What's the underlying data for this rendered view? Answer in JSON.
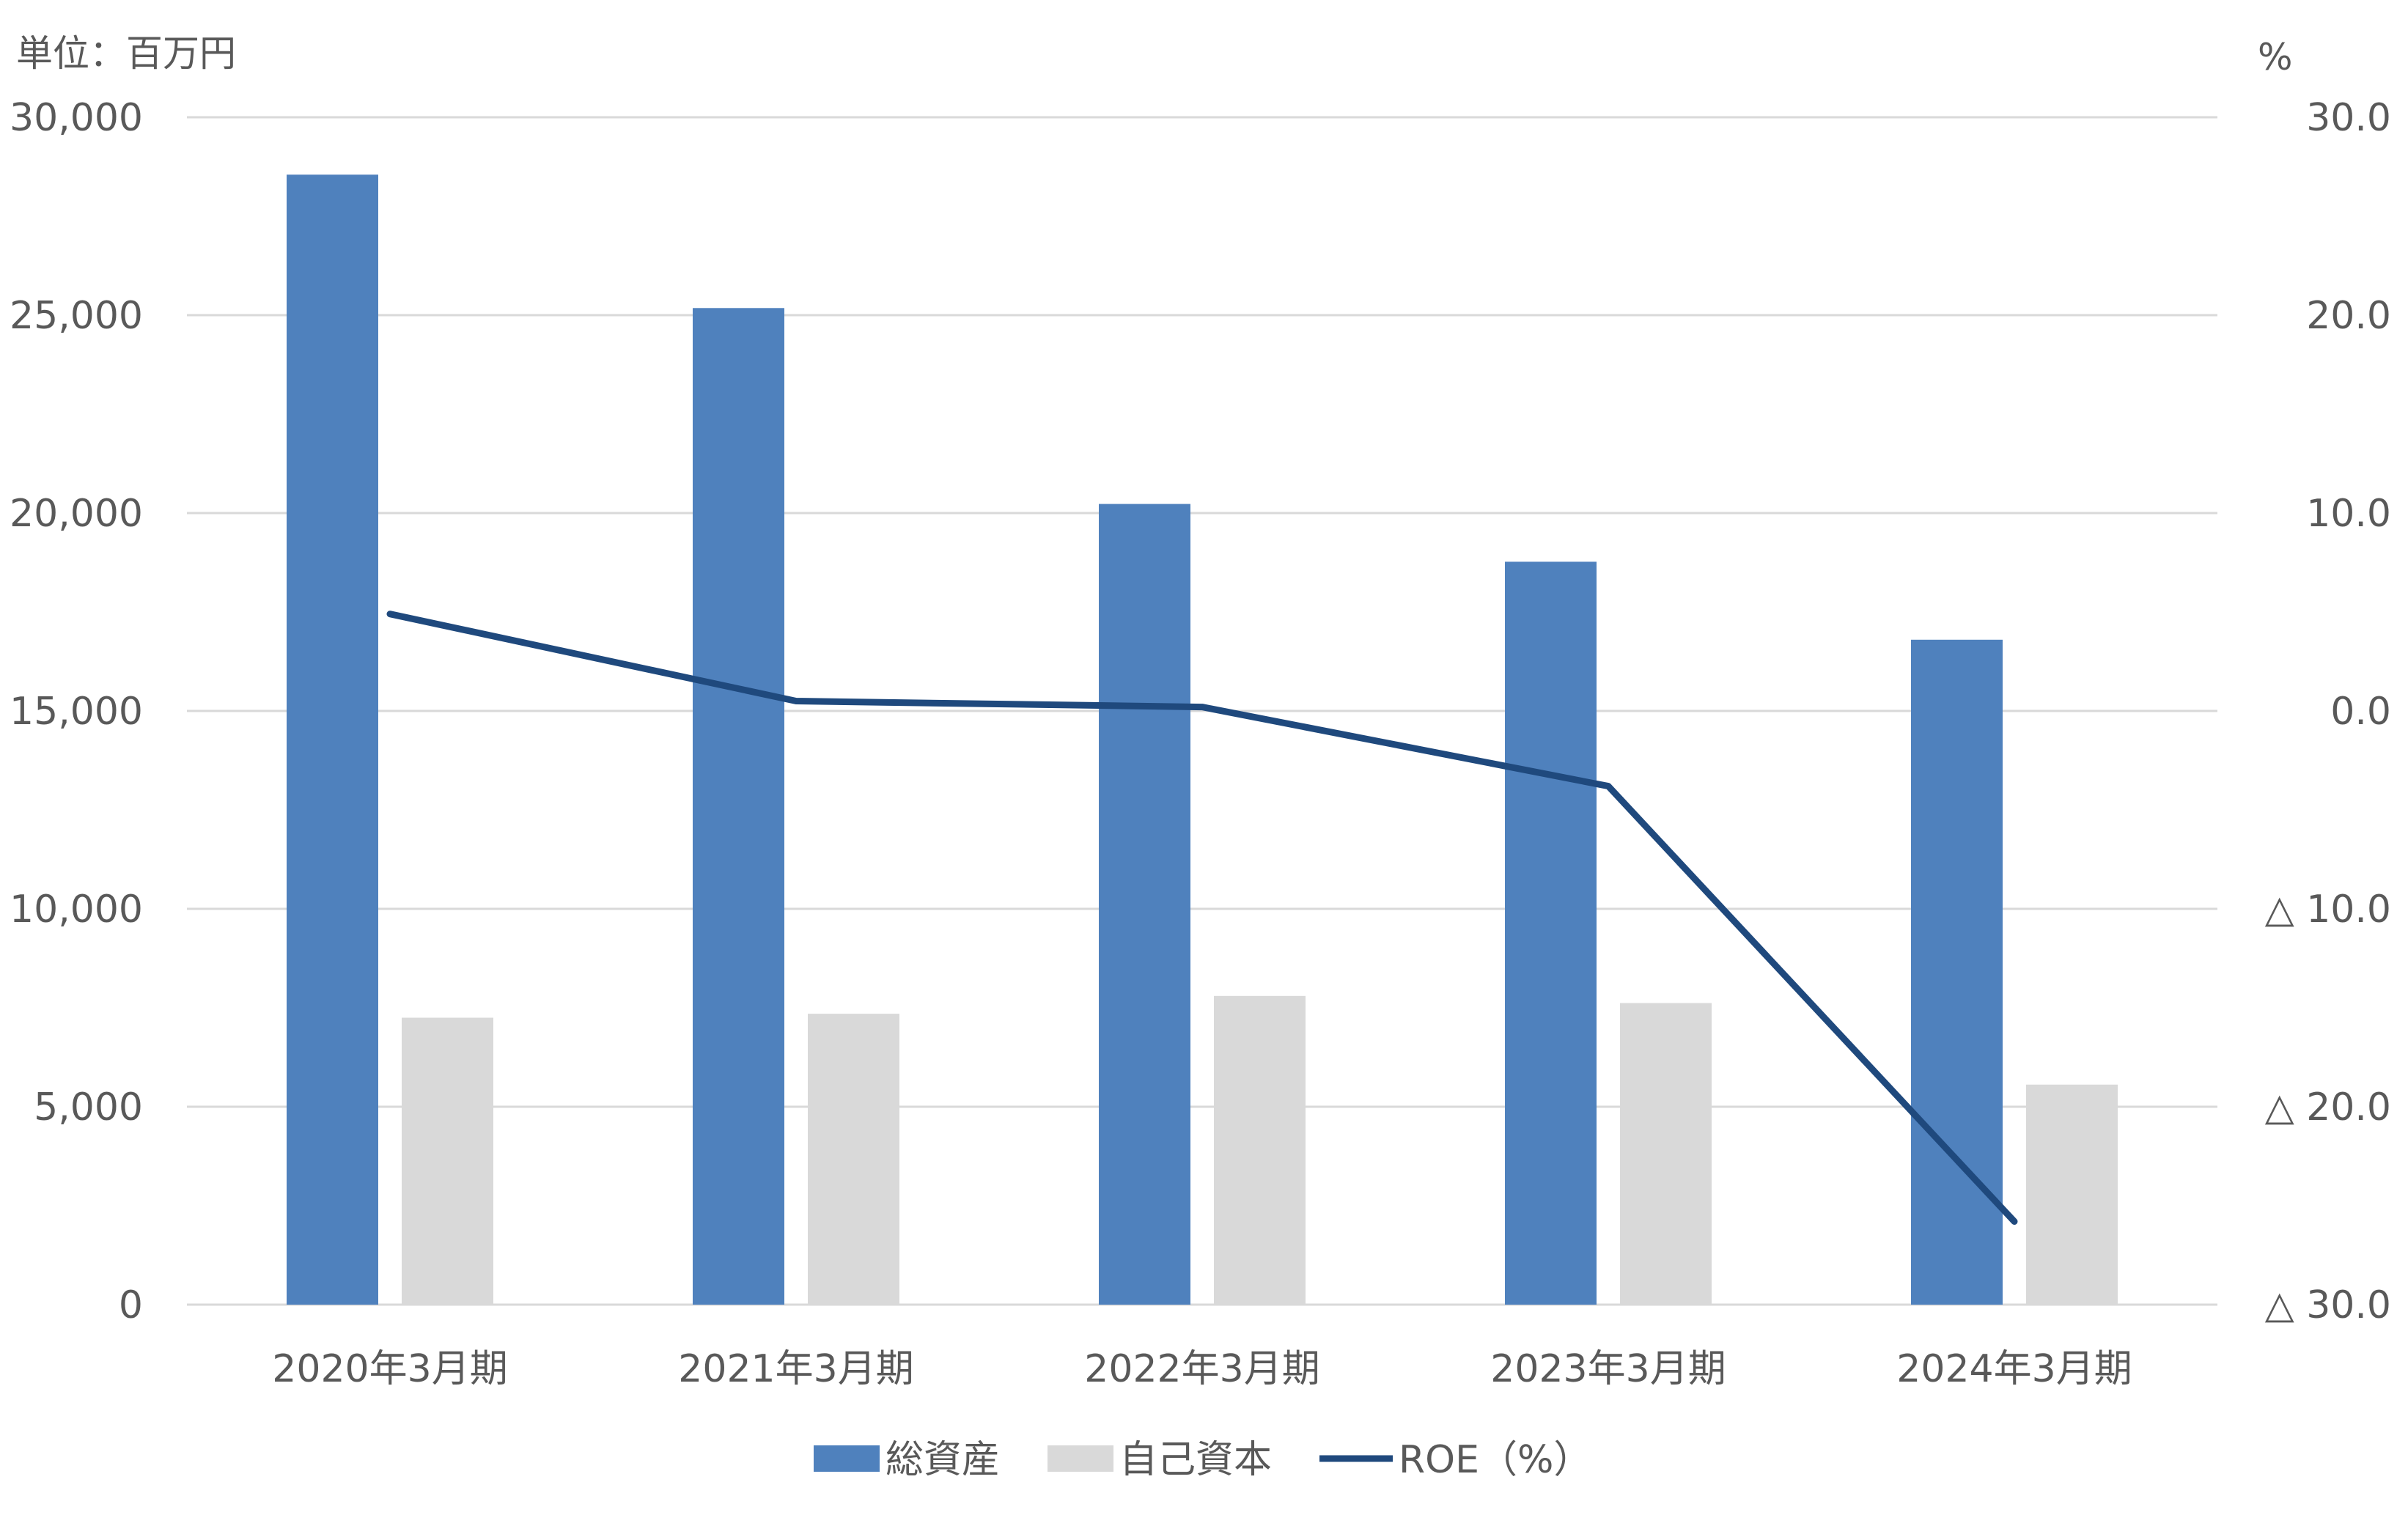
{
  "chart_data": {
    "type": "bar",
    "categories": [
      "2020年3月期",
      "2021年3月期",
      "2022年3月期",
      "2023年3月期",
      "2024年3月期"
    ],
    "series": [
      {
        "name": "総資産",
        "kind": "bar",
        "axis": "left",
        "color": "#4f81bd",
        "values": [
          28550,
          25180,
          20230,
          18770,
          16800
        ]
      },
      {
        "name": "自己資本",
        "kind": "bar",
        "axis": "left",
        "color": "#d9d9d9",
        "values": [
          7250,
          7350,
          7800,
          7620,
          5560
        ]
      },
      {
        "name": "ROE（%）",
        "kind": "line",
        "axis": "right",
        "color": "#1f497d",
        "values": [
          4.9,
          0.5,
          0.2,
          -3.8,
          -25.8
        ]
      }
    ],
    "y_left": {
      "unit_label": "単位：百万円",
      "min": 0,
      "max": 30000,
      "ticks": [
        0,
        5000,
        10000,
        15000,
        20000,
        25000,
        30000
      ],
      "tick_labels": [
        "0",
        "5,000",
        "10,000",
        "15,000",
        "20,000",
        "25,000",
        "30,000"
      ]
    },
    "y_right": {
      "unit_label": "%",
      "min": -30,
      "max": 30,
      "ticks": [
        -30,
        -20,
        -10,
        0,
        10,
        20,
        30
      ],
      "tick_labels": [
        "△ 30.0",
        "△ 20.0",
        "△ 10.0",
        "0.0",
        "10.0",
        "20.0",
        "30.0"
      ]
    },
    "grid": true,
    "legend_position": "bottom"
  }
}
